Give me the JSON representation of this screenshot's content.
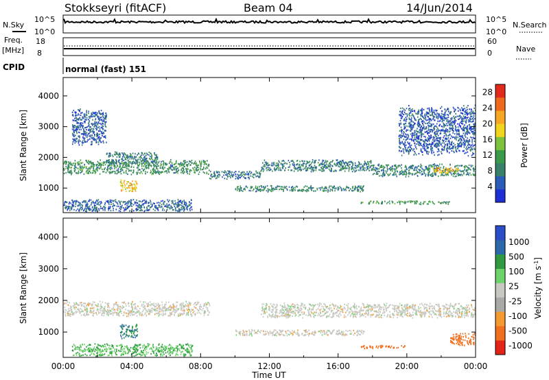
{
  "header": {
    "station": "Stokkseyri (fitACF)",
    "beam": "Beam 04",
    "date": "14/Jun/2014"
  },
  "panels": {
    "nsky": {
      "label": "N.Sky",
      "tick_top": "10^5",
      "tick_bottom": "10^0"
    },
    "nsearch": {
      "label": "N.Search",
      "tick_top": "10^5",
      "tick_bottom": "10^0",
      "legend_sample": "......"
    },
    "freq": {
      "label_line1": "Freq.",
      "label_line2": "[MHz]",
      "tick_top": "18",
      "tick_bottom": "8"
    },
    "nave": {
      "label": "Nave",
      "tick_top": "60",
      "tick_bottom": "0",
      "legend_sample": "...."
    },
    "cpid": {
      "label": "CPID",
      "mode": "normal (fast) 151"
    }
  },
  "colors": {
    "power": [
      "#1f2fd6",
      "#2a5bb8",
      "#3a7f6a",
      "#3a9a4a",
      "#7cc23c",
      "#f2d41e",
      "#f5a623",
      "#ef6a1c",
      "#e12a1c"
    ],
    "velocity": [
      "#e32418",
      "#f07020",
      "#f59a30",
      "#a9a9a5",
      "#c8c8c2",
      "#6ed36a",
      "#2f9a40",
      "#2d68a8",
      "#2a4ec8"
    ],
    "ground": "#a8a8a0"
  },
  "chart_data": [
    {
      "type": "heatmap",
      "name": "power",
      "xlabel": "Time UT",
      "ylabel": "Slant Range [km]",
      "x_ticks": [
        "00:00",
        "04:00",
        "08:00",
        "12:00",
        "16:00",
        "20:00",
        "00:00"
      ],
      "xlim_hours": [
        0,
        24
      ],
      "ylim": [
        200,
        4600
      ],
      "y_ticks": [
        1000,
        2000,
        3000,
        4000
      ],
      "colorbar": {
        "label": "Power [dB]",
        "ticks": [
          4,
          8,
          12,
          16,
          20,
          24,
          28
        ],
        "range": [
          0,
          30
        ]
      },
      "features": [
        {
          "t_start": 0.0,
          "t_end": 8.5,
          "range_center": 1700,
          "range_width": 350,
          "value": 10
        },
        {
          "t_start": 2.5,
          "t_end": 5.5,
          "range_center": 2000,
          "range_width": 300,
          "value": 8
        },
        {
          "t_start": 3.3,
          "t_end": 4.3,
          "range_center": 1100,
          "range_width": 300,
          "value": 20
        },
        {
          "t_start": 8.5,
          "t_end": 11.5,
          "range_center": 1450,
          "range_width": 200,
          "value": 7
        },
        {
          "t_start": 11.5,
          "t_end": 18.0,
          "range_center": 1750,
          "range_width": 300,
          "value": 8
        },
        {
          "t_start": 18.0,
          "t_end": 24.0,
          "range_center": 1600,
          "range_width": 300,
          "value": 9
        },
        {
          "t_start": 21.5,
          "t_end": 23.0,
          "range_center": 1600,
          "range_width": 150,
          "value": 20
        },
        {
          "t_start": 10.0,
          "t_end": 17.5,
          "range_center": 1000,
          "range_width": 150,
          "value": 9
        },
        {
          "t_start": 0.0,
          "t_end": 7.5,
          "range_center": 450,
          "range_width": 300,
          "value": 6
        },
        {
          "t_start": 17.3,
          "t_end": 22.5,
          "range_center": 550,
          "range_width": 80,
          "value": 11
        },
        {
          "t_start": 0.5,
          "t_end": 2.5,
          "range_center": 3000,
          "range_width": 900,
          "value": 5
        },
        {
          "t_start": 19.5,
          "t_end": 24.0,
          "range_center": 2900,
          "range_width": 1200,
          "value": 5
        }
      ]
    },
    {
      "type": "heatmap",
      "name": "velocity",
      "xlabel": "Time UT",
      "ylabel": "Slant Range [km]",
      "x_ticks": [
        "00:00",
        "04:00",
        "08:00",
        "12:00",
        "16:00",
        "20:00",
        "00:00"
      ],
      "xlim_hours": [
        0,
        24
      ],
      "ylim": [
        200,
        4600
      ],
      "y_ticks": [
        1000,
        2000,
        3000,
        4000
      ],
      "colorbar": {
        "label": "Velocity [m s^-1]",
        "ticks": [
          "1000",
          "500",
          "100",
          "25",
          "-25",
          "-100",
          "-500",
          "-1000"
        ]
      },
      "features": [
        {
          "t_start": 0.0,
          "t_end": 8.5,
          "range_center": 1750,
          "range_width": 350,
          "value": 0
        },
        {
          "t_start": 11.5,
          "t_end": 24.0,
          "range_center": 1700,
          "range_width": 350,
          "value": 0
        },
        {
          "t_start": 10.0,
          "t_end": 17.5,
          "range_center": 1000,
          "range_width": 150,
          "value": 0
        },
        {
          "t_start": 3.3,
          "t_end": 4.3,
          "range_center": 1050,
          "range_width": 350,
          "value": 500
        },
        {
          "t_start": 0.5,
          "t_end": 7.5,
          "range_center": 450,
          "range_width": 300,
          "value": 100
        },
        {
          "t_start": 17.3,
          "t_end": 20.0,
          "range_center": 550,
          "range_width": 80,
          "value": -300
        },
        {
          "t_start": 22.5,
          "t_end": 24.0,
          "range_center": 800,
          "range_width": 300,
          "value": -300
        }
      ]
    }
  ]
}
